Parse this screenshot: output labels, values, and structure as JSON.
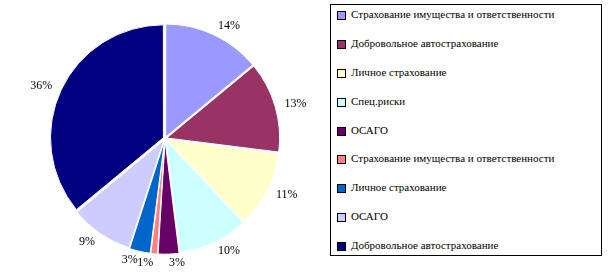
{
  "chart_data": {
    "type": "pie",
    "categories": [
      "Страхование имущества и ответственности",
      "Добровольное автострахование",
      "Личное страхование",
      "Спец.риски",
      "ОСАГО",
      "Страхование имущества и ответственности",
      "Личное страхование",
      "ОСАГО",
      "Добровольное автострахование"
    ],
    "values": [
      14,
      13,
      11,
      10,
      3,
      1,
      3,
      9,
      36
    ],
    "value_labels": [
      "14%",
      "13%",
      "11%",
      "10%",
      "3%",
      "1%",
      "3%",
      "9%",
      "36%"
    ],
    "colors": [
      "#9999ff",
      "#993366",
      "#ffffcc",
      "#ccffff",
      "#660066",
      "#ff8080",
      "#0066cc",
      "#ccccff",
      "#000080"
    ],
    "data_labels": true,
    "legend": "right"
  }
}
